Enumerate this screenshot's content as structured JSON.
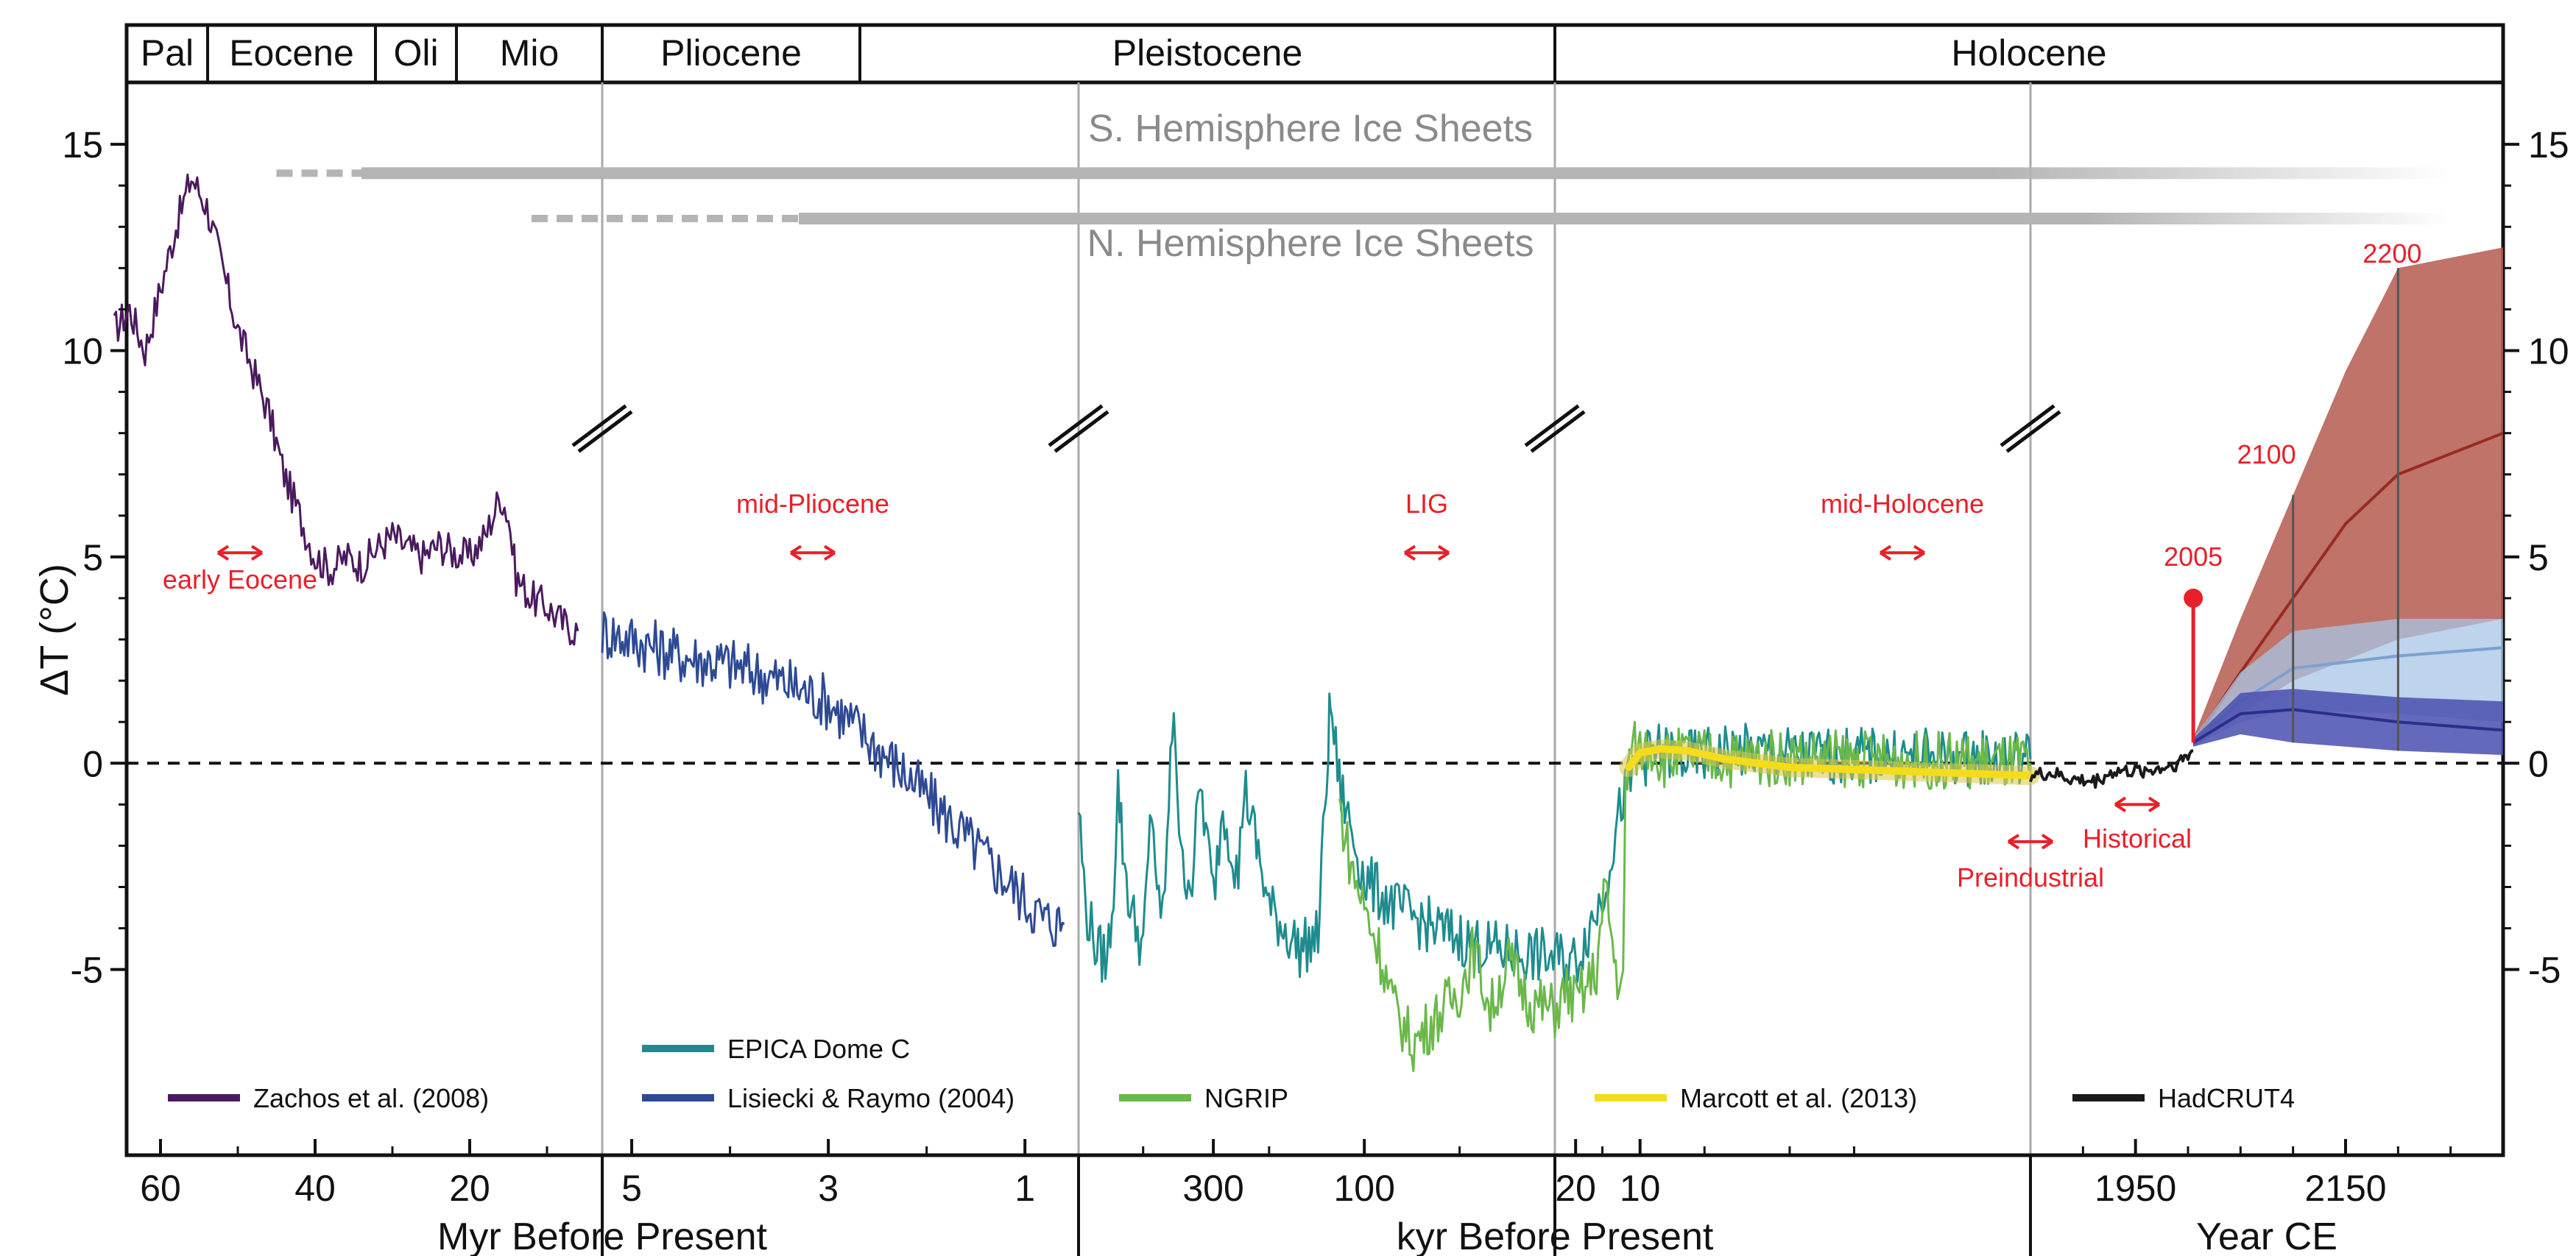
{
  "chart_data": {
    "type": "line",
    "ylabel": "ΔT (°C)",
    "ylim": [
      -9.5,
      16.5
    ],
    "y_ticks": [
      "15",
      "10",
      "5",
      "0",
      "-5"
    ],
    "zero_line": "dashed",
    "epochs": [
      "Pal",
      "Eocene",
      "Oli",
      "Mio",
      "Pliocene",
      "Pleistocene",
      "Holocene"
    ],
    "ice_sheets": {
      "south": {
        "label": "S. Hemisphere Ice Sheets",
        "dashed_from_myr": 45,
        "solid_from_myr": 34
      },
      "north": {
        "label": "N. Hemisphere Ice Sheets",
        "dashed_from_myr": 12,
        "solid_from_myr": 3.3
      }
    },
    "panels": [
      {
        "name": "myr_far",
        "x_ticks": [
          "60",
          "40",
          "20"
        ],
        "x_values": [
          60,
          40,
          20
        ],
        "xlabel": ""
      },
      {
        "name": "myr_near",
        "x_ticks": [
          "5",
          "3",
          "1"
        ],
        "x_values": [
          5,
          3,
          1
        ],
        "xlabel": "Myr Before Present"
      },
      {
        "name": "kyr_far",
        "x_ticks": [
          "300",
          "100"
        ],
        "x_values": [
          300,
          100
        ],
        "xlabel": ""
      },
      {
        "name": "kyr_near",
        "x_ticks": [
          "20",
          "10"
        ],
        "x_values": [
          20,
          10
        ],
        "xlabel": "kyr Before Present"
      },
      {
        "name": "year_ce",
        "x_ticks": [
          "1950",
          "2150"
        ],
        "x_values": [
          1950,
          2150
        ],
        "xlabel": "Year CE"
      }
    ],
    "series": [
      {
        "name": "Zachos et al. (2008)",
        "color": "#4b1a5e",
        "unit": "Myr BP",
        "points": [
          [
            66,
            10.5
          ],
          [
            64,
            11
          ],
          [
            62,
            10
          ],
          [
            60,
            11.5
          ],
          [
            58,
            13
          ],
          [
            56,
            14.2
          ],
          [
            54,
            13.5
          ],
          [
            52,
            12
          ],
          [
            50,
            10.5
          ],
          [
            48,
            9.5
          ],
          [
            46,
            8.5
          ],
          [
            44,
            7
          ],
          [
            42,
            6
          ],
          [
            40,
            5
          ],
          [
            38,
            4.7
          ],
          [
            36,
            5
          ],
          [
            34,
            4.8
          ],
          [
            32,
            5.2
          ],
          [
            30,
            5.5
          ],
          [
            28,
            5.2
          ],
          [
            26,
            5
          ],
          [
            24,
            5.3
          ],
          [
            22,
            5.1
          ],
          [
            20,
            5
          ],
          [
            18,
            5.5
          ],
          [
            16,
            6.5
          ],
          [
            15,
            6
          ],
          [
            14,
            4.5
          ],
          [
            12,
            4
          ],
          [
            10,
            3.8
          ],
          [
            8,
            3.4
          ],
          [
            6,
            3.2
          ]
        ]
      },
      {
        "name": "Lisiecki & Raymo (2004)",
        "color": "#2e4a94",
        "unit": "Myr BP",
        "points": [
          [
            5.3,
            3.2
          ],
          [
            5,
            3
          ],
          [
            4.5,
            2.6
          ],
          [
            4,
            2.4
          ],
          [
            3.5,
            2
          ],
          [
            3,
            1.5
          ],
          [
            2.6,
            0.6
          ],
          [
            2.2,
            -0.3
          ],
          [
            1.8,
            -1.3
          ],
          [
            1.4,
            -2.3
          ],
          [
            1,
            -3.3
          ],
          [
            0.8,
            -3.8
          ],
          [
            0.6,
            -3.9
          ]
        ]
      },
      {
        "name": "EPICA Dome C",
        "color": "#1e8c8e",
        "unit": "kyr BP",
        "points": [
          [
            800,
            -1
          ],
          [
            760,
            -3.5
          ],
          [
            700,
            -4.5
          ],
          [
            650,
            -4.8
          ],
          [
            620,
            -3
          ],
          [
            600,
            -0.5
          ],
          [
            580,
            -2
          ],
          [
            550,
            -3.5
          ],
          [
            500,
            -4.5
          ],
          [
            470,
            -1
          ],
          [
            440,
            -4.2
          ],
          [
            420,
            -2
          ],
          [
            400,
            1.6
          ],
          [
            380,
            -2.5
          ],
          [
            350,
            -2.8
          ],
          [
            330,
            -0.5
          ],
          [
            300,
            -3.2
          ],
          [
            280,
            -1
          ],
          [
            250,
            -2.8
          ],
          [
            240,
            -0.5
          ],
          [
            200,
            -3.5
          ],
          [
            160,
            -4.5
          ],
          [
            140,
            -4.2
          ],
          [
            130,
            0.5
          ],
          [
            128,
            1.5
          ],
          [
            120,
            -0.5
          ],
          [
            100,
            -2.8
          ],
          [
            80,
            -3.5
          ],
          [
            60,
            -4
          ],
          [
            40,
            -4.5
          ],
          [
            20,
            -4.8
          ],
          [
            15,
            -3.2
          ],
          [
            12,
            -0.8
          ],
          [
            10,
            0.1
          ],
          [
            8,
            0.3
          ],
          [
            6,
            0.1
          ],
          [
            4,
            0.3
          ],
          [
            2,
            0.2
          ],
          [
            0.15,
            0.1
          ]
        ]
      },
      {
        "name": "NGRIP",
        "color": "#6ab84a",
        "unit": "kyr BP",
        "points": [
          [
            120,
            -1
          ],
          [
            110,
            -2.5
          ],
          [
            100,
            -3.5
          ],
          [
            90,
            -4.5
          ],
          [
            80,
            -6
          ],
          [
            70,
            -6.8
          ],
          [
            60,
            -6.2
          ],
          [
            50,
            -5.5
          ],
          [
            45,
            -4.5
          ],
          [
            40,
            -6
          ],
          [
            35,
            -4.8
          ],
          [
            30,
            -5.8
          ],
          [
            25,
            -6
          ],
          [
            22,
            -5.5
          ],
          [
            20,
            -5.8
          ],
          [
            18,
            -5.5
          ],
          [
            16,
            -5
          ],
          [
            14.5,
            -3
          ],
          [
            13,
            -5
          ],
          [
            12,
            -5.5
          ],
          [
            11.7,
            -0.6
          ],
          [
            11,
            0.4
          ],
          [
            10,
            0.3
          ],
          [
            9,
            0.5
          ],
          [
            8,
            0.1
          ],
          [
            6,
            0.2
          ],
          [
            4,
            0.1
          ],
          [
            2,
            0.15
          ],
          [
            0.15,
            0
          ]
        ]
      },
      {
        "name": "Marcott et al. (2013)",
        "color": "#f4dc1a",
        "unit": "kyr BP",
        "points": [
          [
            11.3,
            -0.1
          ],
          [
            10,
            0.25
          ],
          [
            8,
            0.35
          ],
          [
            6,
            0.3
          ],
          [
            4,
            0.1
          ],
          [
            2,
            -0.1
          ],
          [
            0.15,
            -0.3
          ]
        ]
      },
      {
        "name": "HadCRUT4",
        "color": "#1a1a1a",
        "unit": "Year CE",
        "points": [
          [
            1850,
            -0.3
          ],
          [
            1870,
            -0.25
          ],
          [
            1890,
            -0.4
          ],
          [
            1910,
            -0.45
          ],
          [
            1930,
            -0.2
          ],
          [
            1950,
            -0.2
          ],
          [
            1970,
            -0.15
          ],
          [
            1990,
            0
          ],
          [
            2005,
            0.3
          ]
        ]
      }
    ],
    "projections": {
      "unit": "Year CE",
      "high": {
        "color": "#b45b4f",
        "years": [
          2005,
          2050,
          2100,
          2150,
          2200,
          2300
        ],
        "mean": [
          0.5,
          2.2,
          4,
          5.8,
          7,
          8
        ],
        "upper": [
          0.6,
          3.5,
          6.5,
          9.5,
          12,
          12.5
        ],
        "lower": [
          0.4,
          1.2,
          2,
          2.5,
          3,
          3.5
        ]
      },
      "medium": {
        "color": "#a8c4e6",
        "years": [
          2005,
          2050,
          2100,
          2200,
          2300
        ],
        "mean": [
          0.5,
          1.5,
          2.3,
          2.6,
          2.8
        ],
        "upper": [
          0.6,
          2.2,
          3.2,
          3.5,
          3.5
        ],
        "lower": [
          0.4,
          1,
          1.3,
          1.2,
          1
        ]
      },
      "low": {
        "color": "#4a4fb0",
        "years": [
          2005,
          2050,
          2100,
          2200,
          2300
        ],
        "mean": [
          0.5,
          1.2,
          1.3,
          1,
          0.8
        ],
        "upper": [
          0.6,
          1.7,
          1.8,
          1.6,
          1.5
        ],
        "lower": [
          0.4,
          0.7,
          0.5,
          0.3,
          0.2
        ]
      }
    },
    "markers": [
      {
        "label": "2005",
        "year": 2005,
        "value": 4
      },
      {
        "label": "2100",
        "year": 2100,
        "value": 7.2
      },
      {
        "label": "2200",
        "year": 2200,
        "value": 12
      }
    ],
    "intervals": [
      {
        "label": "early Eocene",
        "label_position": "below"
      },
      {
        "label": "mid-Pliocene",
        "label_position": "above"
      },
      {
        "label": "LIG",
        "label_position": "above"
      },
      {
        "label": "mid-Holocene",
        "label_position": "above"
      },
      {
        "label": "Preindustrial",
        "label_position": "below"
      },
      {
        "label": "Historical",
        "label_position": "below"
      }
    ],
    "legend_rows": [
      [
        "Zachos et al. (2008)",
        "Lisiecki & Raymo (2004)",
        "NGRIP",
        "Marcott et al. (2013)",
        "HadCRUT4"
      ],
      [
        "EPICA Dome C"
      ]
    ],
    "colors": {
      "annotation": "#e8202a",
      "axis": "#111111",
      "ice_sheet": "#b4b4b4",
      "divider": "#aaaaaa"
    }
  }
}
